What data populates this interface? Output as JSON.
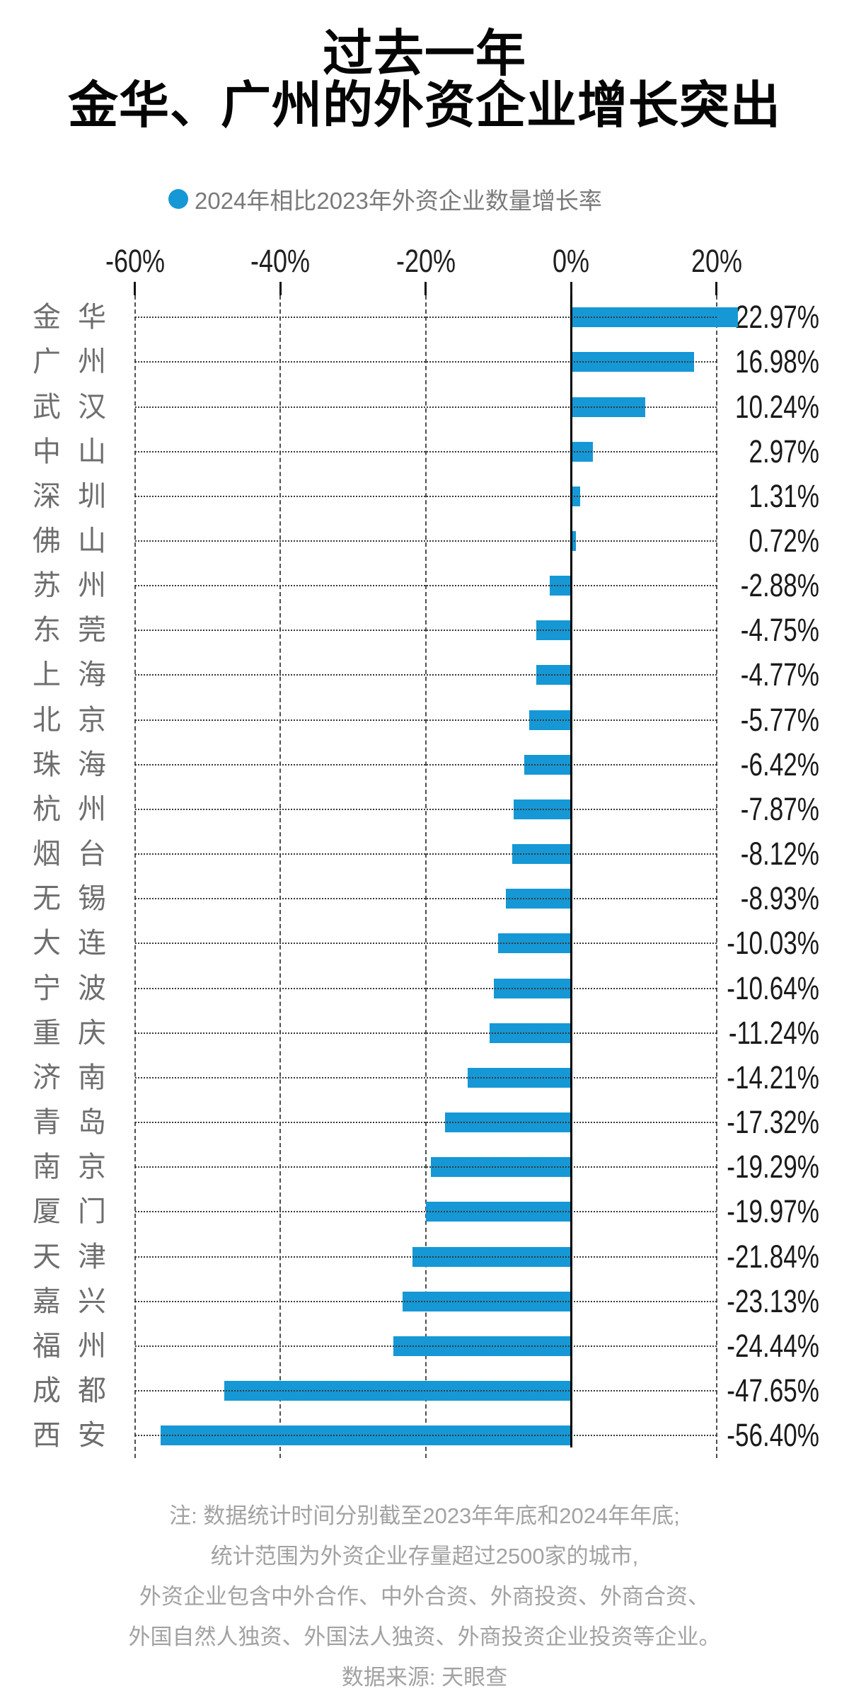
{
  "title": {
    "line1": "过去一年",
    "line2": "金华、广州的外资企业增长突出"
  },
  "legend": {
    "label": "2024年相比2023年外资企业数量增长率"
  },
  "colors": {
    "bar": "#1598D5",
    "zero_axis": "#000000",
    "gridline": "#4f4f4f",
    "city_label": "#6e6e6e",
    "value_label": "#1a1a1a",
    "legend_text": "#7a7a7a",
    "footer_text": "#a2a2a2"
  },
  "chart_data": {
    "type": "bar",
    "orientation": "horizontal",
    "title": "过去一年 金华、广州的外资企业增长突出",
    "series_name": "2024年相比2023年外资企业数量增长率",
    "unit": "%",
    "xlim": [
      -60,
      20
    ],
    "grid": true,
    "x_ticks": [
      {
        "label": "-60%",
        "value": -60
      },
      {
        "label": "-40%",
        "value": -40
      },
      {
        "label": "-20%",
        "value": -20
      },
      {
        "label": "0%",
        "value": 0
      },
      {
        "label": "20%",
        "value": 20
      }
    ],
    "categories": [
      "金华",
      "广州",
      "武汉",
      "中山",
      "深圳",
      "佛山",
      "苏州",
      "东莞",
      "上海",
      "北京",
      "珠海",
      "杭州",
      "烟台",
      "无锡",
      "大连",
      "宁波",
      "重庆",
      "济南",
      "青岛",
      "南京",
      "厦门",
      "天津",
      "嘉兴",
      "福州",
      "成都",
      "西安"
    ],
    "values": [
      22.97,
      16.98,
      10.24,
      2.97,
      1.31,
      0.72,
      -2.88,
      -4.75,
      -4.77,
      -5.77,
      -6.42,
      -7.87,
      -8.12,
      -8.93,
      -10.03,
      -10.64,
      -11.24,
      -14.21,
      -17.32,
      -19.29,
      -19.97,
      -21.84,
      -23.13,
      -24.44,
      -47.65,
      -56.4
    ],
    "value_labels": [
      "22.97%",
      "16.98%",
      "10.24%",
      "2.97%",
      "1.31%",
      "0.72%",
      "-2.88%",
      "-4.75%",
      "-4.77%",
      "-5.77%",
      "-6.42%",
      "-7.87%",
      "-8.12%",
      "-8.93%",
      "-10.03%",
      "-10.64%",
      "-11.24%",
      "-14.21%",
      "-17.32%",
      "-19.29%",
      "-19.97%",
      "-21.84%",
      "-23.13%",
      "-24.44%",
      "-47.65%",
      "-56.40%"
    ]
  },
  "footer": {
    "lines": [
      "注: 数据统计时间分别截至2023年年底和2024年年底;",
      "统计范围为外资企业存量超过2500家的城市,",
      "外资企业包含中外合作、中外合资、外商投资、外商合资、",
      "外国自然人独资、外国法人独资、外商投资企业投资等企业。",
      "数据来源: 天眼查"
    ]
  }
}
